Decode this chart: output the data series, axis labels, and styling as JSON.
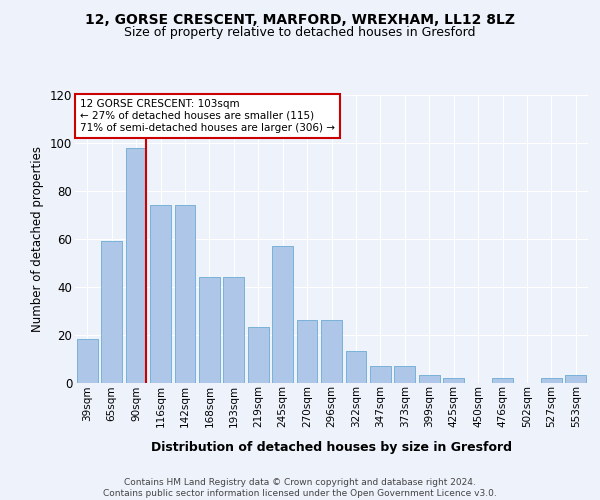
{
  "title1": "12, GORSE CRESCENT, MARFORD, WREXHAM, LL12 8LZ",
  "title2": "Size of property relative to detached houses in Gresford",
  "xlabel": "Distribution of detached houses by size in Gresford",
  "ylabel": "Number of detached properties",
  "categories": [
    "39sqm",
    "65sqm",
    "90sqm",
    "116sqm",
    "142sqm",
    "168sqm",
    "193sqm",
    "219sqm",
    "245sqm",
    "270sqm",
    "296sqm",
    "322sqm",
    "347sqm",
    "373sqm",
    "399sqm",
    "425sqm",
    "450sqm",
    "476sqm",
    "502sqm",
    "527sqm",
    "553sqm"
  ],
  "values": [
    18,
    59,
    98,
    74,
    74,
    44,
    44,
    23,
    57,
    26,
    26,
    13,
    7,
    7,
    3,
    2,
    0,
    2,
    0,
    2,
    3
  ],
  "bar_color": "#aec6e8",
  "bar_edge_color": "#6aaad4",
  "annotation_text": "12 GORSE CRESCENT: 103sqm\n← 27% of detached houses are smaller (115)\n71% of semi-detached houses are larger (306) →",
  "annotation_box_color": "#ffffff",
  "annotation_box_edge": "#cc0000",
  "vline_color": "#cc0000",
  "footer_text": "Contains HM Land Registry data © Crown copyright and database right 2024.\nContains public sector information licensed under the Open Government Licence v3.0.",
  "ylim": [
    0,
    120
  ],
  "yticks": [
    0,
    20,
    40,
    60,
    80,
    100,
    120
  ],
  "background_color": "#eef2fb",
  "grid_color": "#ffffff",
  "title1_fontsize": 10,
  "title2_fontsize": 9,
  "ylabel_fontsize": 8.5,
  "xlabel_fontsize": 9,
  "tick_fontsize": 7.5,
  "footer_fontsize": 6.5,
  "ann_fontsize": 7.5
}
